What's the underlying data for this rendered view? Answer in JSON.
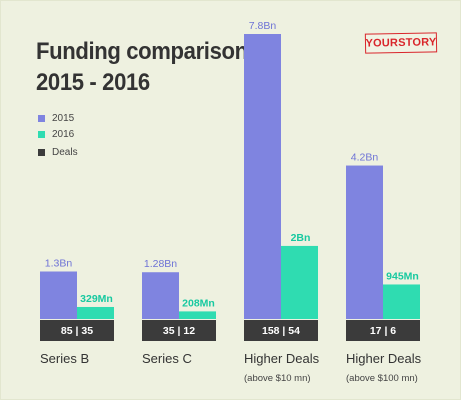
{
  "title_lines": [
    "Funding comparison",
    "2015 - 2016"
  ],
  "brand": "YOURSTORY",
  "legend": [
    {
      "label": "2015",
      "color": "#7f84e0"
    },
    {
      "label": "2016",
      "color": "#2fdcb1"
    },
    {
      "label": "Deals",
      "color": "#3b3b3b"
    }
  ],
  "chart_data": {
    "type": "bar",
    "categories": [
      "Series B",
      "Series C",
      "Higher Deals",
      "Higher Deals"
    ],
    "category_sublabels": [
      "",
      "",
      "(above $10 mn)",
      "(above $100 mn)"
    ],
    "series": [
      {
        "name": "2015",
        "color": "#7f84e0",
        "unit": "Bn",
        "values": [
          1.3,
          1.28,
          7.8,
          4.2
        ],
        "labels": [
          "1.3Bn",
          "1.28Bn",
          "7.8Bn",
          "4.2Bn"
        ]
      },
      {
        "name": "2016",
        "color": "#2fdcb1",
        "unit": "Bn",
        "values": [
          0.329,
          0.208,
          2.0,
          0.945
        ],
        "labels": [
          "329Mn",
          "208Mn",
          "2Bn",
          "945Mn"
        ]
      }
    ],
    "deals": {
      "name": "Deals",
      "color": "#3b3b3b",
      "values_2015": [
        85,
        35,
        158,
        17
      ],
      "values_2016": [
        35,
        12,
        54,
        6
      ],
      "labels": [
        "85 | 35",
        "35 | 12",
        "158 | 54",
        "17 | 6"
      ]
    },
    "value_label_color_2015": "#6e73d6",
    "value_label_color_2016": "#17c9a0"
  }
}
